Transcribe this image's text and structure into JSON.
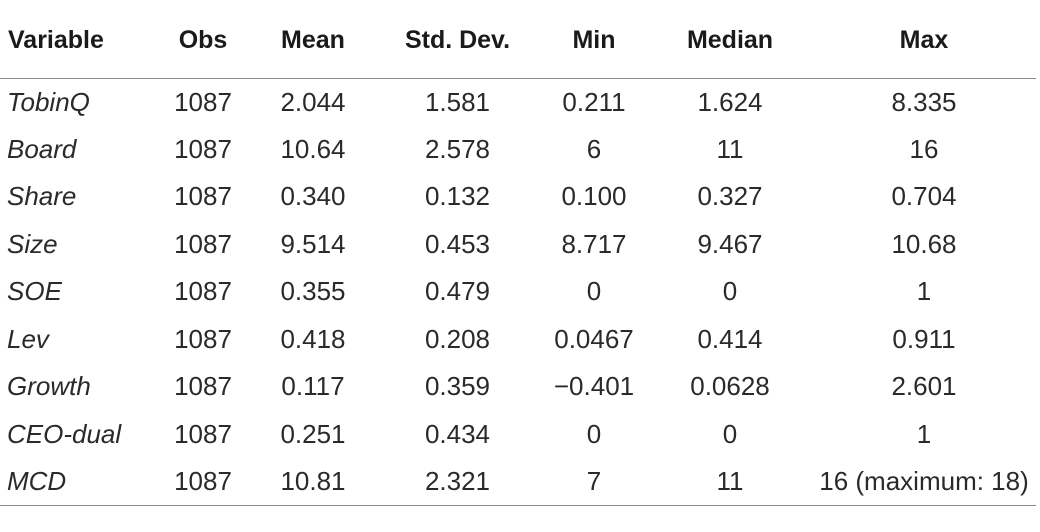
{
  "table": {
    "headers": [
      "Variable",
      "Obs",
      "Mean",
      "Std. Dev.",
      "Min",
      "Median",
      "Max"
    ],
    "rows": [
      [
        "TobinQ",
        "1087",
        "2.044",
        "1.581",
        "0.211",
        "1.624",
        "8.335"
      ],
      [
        "Board",
        "1087",
        "10.64",
        "2.578",
        "6",
        "11",
        "16"
      ],
      [
        "Share",
        "1087",
        "0.340",
        "0.132",
        "0.100",
        "0.327",
        "0.704"
      ],
      [
        "Size",
        "1087",
        "9.514",
        "0.453",
        "8.717",
        "9.467",
        "10.68"
      ],
      [
        "SOE",
        "1087",
        "0.355",
        "0.479",
        "0",
        "0",
        "1"
      ],
      [
        "Lev",
        "1087",
        "0.418",
        "0.208",
        "0.0467",
        "0.414",
        "0.911"
      ],
      [
        "Growth",
        "1087",
        "0.117",
        "0.359",
        "−0.401",
        "0.0628",
        "2.601"
      ],
      [
        "CEO-dual",
        "1087",
        "0.251",
        "0.434",
        "0",
        "0",
        "1"
      ],
      [
        "MCD",
        "1087",
        "10.81",
        "2.321",
        "7",
        "11",
        "16 (maximum: 18)"
      ]
    ]
  }
}
